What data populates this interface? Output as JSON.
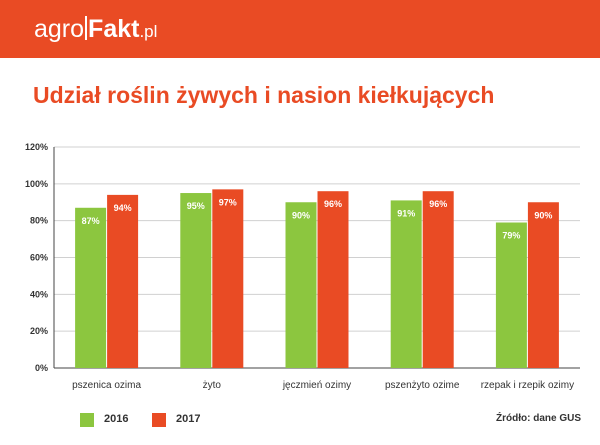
{
  "brand": {
    "agro": "agro",
    "fakt": "Fakt",
    "pl": ".pl"
  },
  "colors": {
    "header": "#e94b24",
    "series_2016": "#8cc63f",
    "series_2017": "#e94b24",
    "title": "#e94b24"
  },
  "title": "Udział roślin żywych i nasion kiełkujących",
  "source": "Źródło: dane GUS",
  "chart_data": {
    "type": "bar",
    "title": "Udział roślin żywych i nasion kiełkujących",
    "xlabel": "",
    "ylabel": "",
    "ylim": [
      0,
      120
    ],
    "yticks": [
      "0%",
      "20%",
      "40%",
      "60%",
      "80%",
      "100%",
      "120%"
    ],
    "grid": true,
    "legend": "bottom-left",
    "categories": [
      "pszenica ozima",
      "żyto",
      "jęczmień ozimy",
      "pszenżyto ozime",
      "rzepak i rzepik ozimy"
    ],
    "series": [
      {
        "name": "2016",
        "color": "#8cc63f",
        "values": [
          87,
          95,
          90,
          91,
          79
        ],
        "labels": [
          "87%",
          "95%",
          "90%",
          "91%",
          "79%"
        ]
      },
      {
        "name": "2017",
        "color": "#e94b24",
        "values": [
          94,
          97,
          96,
          96,
          90
        ],
        "labels": [
          "94%",
          "97%",
          "96%",
          "96%",
          "90%"
        ]
      }
    ]
  }
}
